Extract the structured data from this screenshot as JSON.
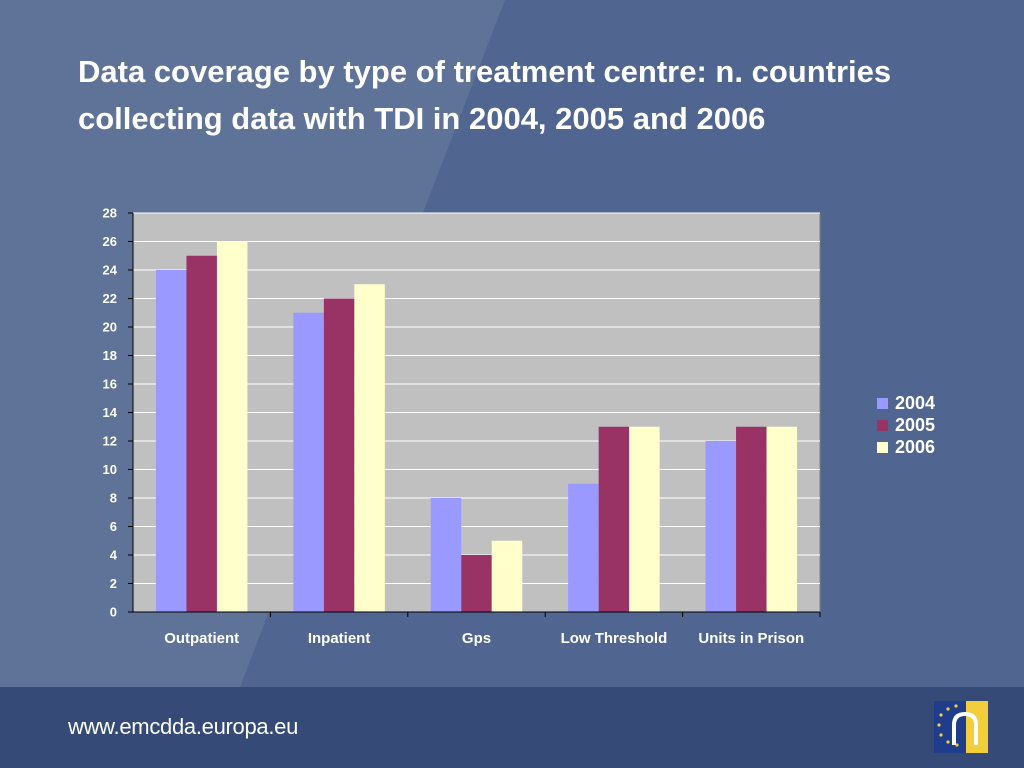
{
  "title": "Data coverage by type of treatment centre: n. countries collecting data with TDI in 2004, 2005 and 2006",
  "footer": {
    "url": "www.emcdda.europa.eu",
    "logo_icon": "emcdda-eu-logo-icon"
  },
  "colors": {
    "background": "#50658f",
    "plot_area": "#c0c0c0",
    "footer": "#354a76",
    "series": [
      "#9999ff",
      "#993366",
      "#ffffcc"
    ]
  },
  "chart_data": {
    "type": "bar",
    "title": "Data coverage by type of treatment centre: n. countries collecting data with TDI in 2004, 2005 and 2006",
    "xlabel": "",
    "ylabel": "",
    "categories": [
      "Outpatient",
      "Inpatient",
      "Gps",
      "Low Threshold",
      "Units in Prison"
    ],
    "series": [
      {
        "name": "2004",
        "values": [
          24,
          21,
          8,
          9,
          12
        ]
      },
      {
        "name": "2005",
        "values": [
          25,
          22,
          4,
          13,
          13
        ]
      },
      {
        "name": "2006",
        "values": [
          26,
          23,
          5,
          13,
          13
        ]
      }
    ],
    "ylim": [
      0,
      28
    ],
    "yticks": [
      0,
      2,
      4,
      6,
      8,
      10,
      12,
      14,
      16,
      18,
      20,
      22,
      24,
      26,
      28
    ],
    "grid": true,
    "legend": "right"
  }
}
